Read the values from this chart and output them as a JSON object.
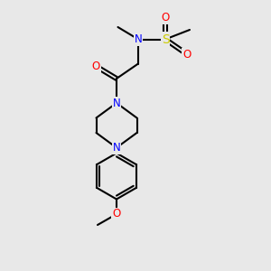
{
  "background_color": "#e8e8e8",
  "line_color": "#000000",
  "nitrogen_color": "#0000ff",
  "oxygen_color": "#ff0000",
  "sulfur_color": "#cccc00",
  "font_size": 8.5,
  "line_width": 1.5,
  "figsize": [
    3.0,
    3.0
  ],
  "dpi": 100,
  "xlim": [
    0,
    10
  ],
  "ylim": [
    0,
    10
  ]
}
